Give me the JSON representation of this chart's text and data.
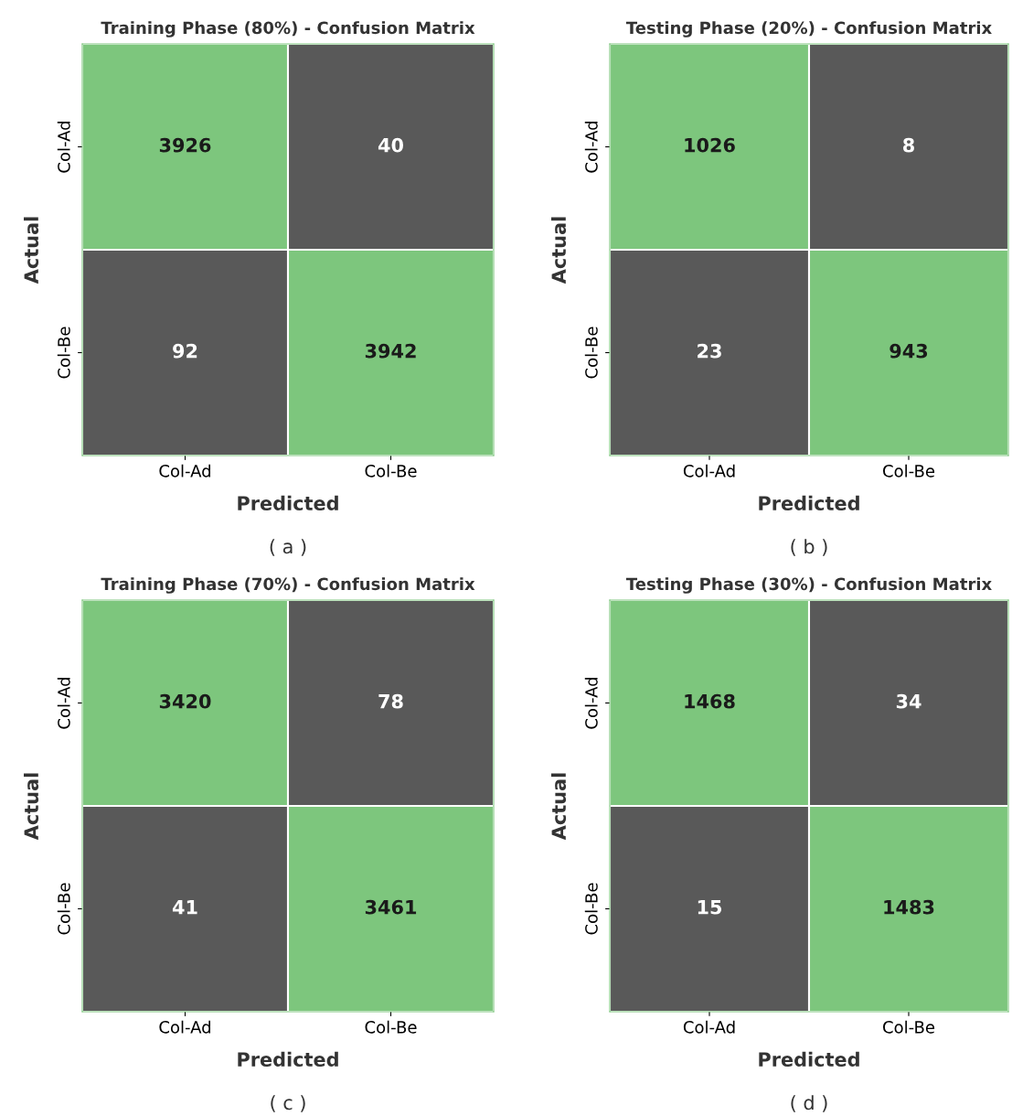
{
  "chart_data": [
    {
      "type": "heatmap",
      "title": "Training Phase (80%) - Confusion Matrix",
      "xlabel": "Predicted",
      "ylabel": "Actual",
      "categories": [
        "Col-Ad",
        "Col-Be"
      ],
      "y_categories": [
        "Col-Ad",
        "Col-Be"
      ],
      "cells": [
        [
          3926,
          40
        ],
        [
          92,
          3942
        ]
      ],
      "colors": [
        "#595959",
        "#7dc67d"
      ],
      "data_labels": true,
      "annotations": [
        "( a )"
      ]
    },
    {
      "type": "heatmap",
      "title": "Testing Phase (20%) - Confusion Matrix",
      "xlabel": "Predicted",
      "ylabel": "Actual",
      "categories": [
        "Col-Ad",
        "Col-Be"
      ],
      "y_categories": [
        "Col-Ad",
        "Col-Be"
      ],
      "cells": [
        [
          1026,
          8
        ],
        [
          23,
          943
        ]
      ],
      "colors": [
        "#595959",
        "#7dc67d"
      ],
      "data_labels": true,
      "annotations": [
        "( b )"
      ]
    },
    {
      "type": "heatmap",
      "title": "Training Phase (70%) - Confusion Matrix",
      "xlabel": "Predicted",
      "ylabel": "Actual",
      "categories": [
        "Col-Ad",
        "Col-Be"
      ],
      "y_categories": [
        "Col-Ad",
        "Col-Be"
      ],
      "cells": [
        [
          3420,
          78
        ],
        [
          41,
          3461
        ]
      ],
      "colors": [
        "#595959",
        "#7dc67d"
      ],
      "data_labels": true,
      "annotations": [
        "( c )"
      ]
    },
    {
      "type": "heatmap",
      "title": "Testing Phase (30%) - Confusion Matrix",
      "xlabel": "Predicted",
      "ylabel": "Actual",
      "categories": [
        "Col-Ad",
        "Col-Be"
      ],
      "y_categories": [
        "Col-Ad",
        "Col-Be"
      ],
      "cells": [
        [
          1468,
          34
        ],
        [
          15,
          1483
        ]
      ],
      "colors": [
        "#595959",
        "#7dc67d"
      ],
      "data_labels": true,
      "annotations": [
        "( d )"
      ]
    }
  ]
}
